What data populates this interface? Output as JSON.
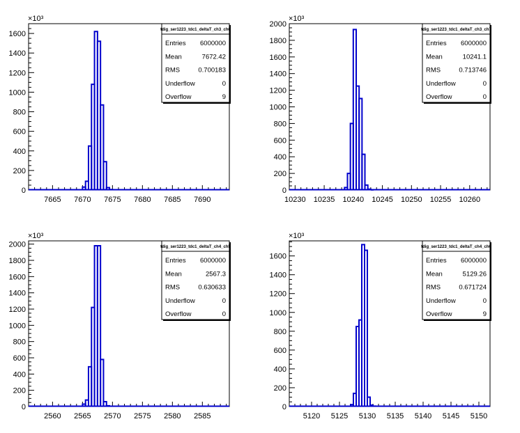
{
  "chart_data": [
    {
      "type": "bar",
      "title": "tdig_ser1223_tdc1_deltaT_ch3_ch6",
      "x_ticks": [
        7665,
        7670,
        7675,
        7680,
        7685,
        7690
      ],
      "xlim": [
        7661,
        7694.5
      ],
      "ylim": [
        0,
        1700
      ],
      "y_ticks": [
        0,
        200,
        400,
        600,
        800,
        1000,
        1200,
        1400,
        1600
      ],
      "y_multiplier": "×10³",
      "bin_width": 0.5,
      "x": [
        7670.0,
        7670.5,
        7671.0,
        7671.5,
        7672.0,
        7672.5,
        7673.0,
        7673.5,
        7674.0,
        7674.5
      ],
      "values": [
        30,
        90,
        450,
        1080,
        1620,
        1520,
        870,
        290,
        25,
        5
      ],
      "stats": [
        {
          "label": "Entries",
          "value": "6000000"
        },
        {
          "label": "Mean",
          "value": "7672.42"
        },
        {
          "label": "RMS",
          "value": "0.700183"
        },
        {
          "label": "Underflow",
          "value": "0"
        },
        {
          "label": "Overflow",
          "value": "9"
        }
      ]
    },
    {
      "type": "bar",
      "title": "tdig_ser1223_tdc1_deltaT_ch3_ch7",
      "x_ticks": [
        10230,
        10235,
        10240,
        10245,
        10250,
        10255,
        10260
      ],
      "xlim": [
        10229,
        10263.5
      ],
      "ylim": [
        0,
        2000
      ],
      "y_ticks": [
        0,
        200,
        400,
        600,
        800,
        1000,
        1200,
        1400,
        1600,
        1800,
        2000
      ],
      "y_multiplier": "×10³",
      "bin_width": 0.5,
      "x": [
        10238.5,
        10239.0,
        10239.5,
        10240.0,
        10240.5,
        10241.0,
        10241.5,
        10242.0,
        10242.5,
        10243.0
      ],
      "values": [
        30,
        200,
        800,
        1930,
        1250,
        1100,
        430,
        60,
        10,
        2
      ],
      "stats": [
        {
          "label": "Entries",
          "value": "6000000"
        },
        {
          "label": "Mean",
          "value": "10241.1"
        },
        {
          "label": "RMS",
          "value": "0.713746"
        },
        {
          "label": "Underflow",
          "value": "0"
        },
        {
          "label": "Overflow",
          "value": "0"
        }
      ]
    },
    {
      "type": "bar",
      "title": "tdig_ser1223_tdc1_deltaT_ch4_ch5",
      "x_ticks": [
        2560,
        2565,
        2570,
        2575,
        2580,
        2585
      ],
      "xlim": [
        2556,
        2589.5
      ],
      "ylim": [
        0,
        2040
      ],
      "y_ticks": [
        0,
        200,
        400,
        600,
        800,
        1000,
        1200,
        1400,
        1600,
        1800,
        2000
      ],
      "y_multiplier": "×10³",
      "bin_width": 0.5,
      "x": [
        2565.0,
        2565.5,
        2566.0,
        2566.5,
        2567.0,
        2567.5,
        2568.0,
        2568.5,
        2569.0
      ],
      "values": [
        30,
        80,
        490,
        1220,
        1980,
        1980,
        580,
        60,
        10
      ],
      "stats": [
        {
          "label": "Entries",
          "value": "6000000"
        },
        {
          "label": "Mean",
          "value": "2567.3"
        },
        {
          "label": "RMS",
          "value": "0.630633"
        },
        {
          "label": "Underflow",
          "value": "0"
        },
        {
          "label": "Overflow",
          "value": "0"
        }
      ]
    },
    {
      "type": "bar",
      "title": "tdig_ser1223_tdc1_deltaT_ch4_ch6",
      "x_ticks": [
        5120,
        5125,
        5130,
        5135,
        5140,
        5145,
        5150
      ],
      "xlim": [
        5116,
        5152
      ],
      "ylim": [
        0,
        1760
      ],
      "y_ticks": [
        0,
        200,
        400,
        600,
        800,
        1000,
        1200,
        1400,
        1600
      ],
      "y_multiplier": "×10³",
      "bin_width": 0.5,
      "x": [
        5127.0,
        5127.5,
        5128.0,
        5128.5,
        5129.0,
        5129.5,
        5130.0,
        5130.5,
        5131.0
      ],
      "values": [
        20,
        140,
        850,
        920,
        1720,
        1660,
        100,
        15,
        5
      ],
      "stats": [
        {
          "label": "Entries",
          "value": "6000000"
        },
        {
          "label": "Mean",
          "value": "5129.26"
        },
        {
          "label": "RMS",
          "value": "0.671724"
        },
        {
          "label": "Underflow",
          "value": "0"
        },
        {
          "label": "Overflow",
          "value": "9"
        }
      ]
    }
  ]
}
